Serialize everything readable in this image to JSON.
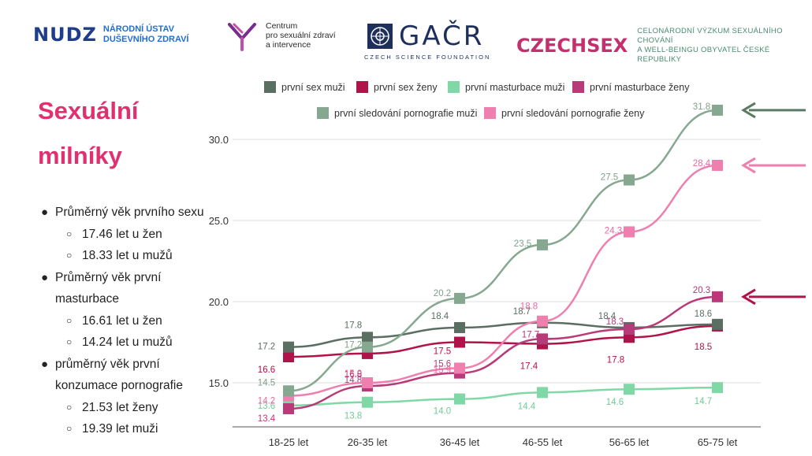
{
  "logos": {
    "nudz": {
      "mark": "NUDZ",
      "line1": "NÁRODNÍ ÚSTAV",
      "line2": "DUŠEVNÍHO ZDRAVÍ"
    },
    "centrum": {
      "line1": "Centrum",
      "line2": "pro sexuální zdraví",
      "line3": "a intervence"
    },
    "gacr": {
      "word": "GAČR",
      "sub": "CZECH SCIENCE FOUNDATION"
    },
    "czechsex": {
      "word": "CZECHSEX",
      "line1": "CELONÁRODNÍ VÝZKUM SEXUÁLNÍHO CHOVÁNÍ",
      "line2": "A WELL-BEINGU OBYVATEL ČESKÉ REPUBLIKY"
    }
  },
  "heading": {
    "line1": "Sexuální",
    "line2": "milníky"
  },
  "stats": [
    {
      "text": "Průměrný věk prvního sexu",
      "sub": [
        "17.46 let u žen",
        "18.33 let u mužů"
      ]
    },
    {
      "text": "Průměrný věk první masturbace",
      "sub": [
        "16.61 let u žen",
        "14.24 let u mužů"
      ]
    },
    {
      "text": "průměrný věk první konzumace pornografie",
      "sub": [
        "21.53 let ženy",
        "19.39 let muži"
      ]
    }
  ],
  "colors": {
    "heading": "#e0306f"
  },
  "chart_data": {
    "type": "line",
    "categories": [
      "18-25 let",
      "26-35 let",
      "36-45 let",
      "46-55 let",
      "56-65 let",
      "65-75 let"
    ],
    "yticks": [
      "15.0",
      "20.0",
      "25.0",
      "30.0"
    ],
    "ylim": [
      12.6,
      31.8
    ],
    "grid": true,
    "legend_position": "top",
    "series": [
      {
        "name": "první sex muži",
        "color": "#5a6e61",
        "values": [
          17.2,
          17.8,
          18.4,
          18.7,
          18.4,
          18.6
        ],
        "labels": [
          "17.2",
          "17.8",
          "18.4",
          "18.7",
          "18.4",
          "18.6"
        ]
      },
      {
        "name": "první sex ženy",
        "color": "#b0124a",
        "values": [
          16.6,
          16.8,
          17.5,
          17.4,
          17.8,
          18.5
        ],
        "labels": [
          "16.6",
          "16.8",
          "17.5",
          "17.4",
          "17.8",
          "18.5"
        ]
      },
      {
        "name": "první masturbace muži",
        "color": "#7fd8a5",
        "values": [
          13.6,
          13.8,
          14.0,
          14.4,
          14.6,
          14.7
        ],
        "labels": [
          "13.6",
          "13.8",
          "14.0",
          "14.4",
          "14.6",
          "14.7"
        ]
      },
      {
        "name": "první masturbace ženy",
        "color": "#b83a78",
        "values": [
          13.4,
          14.8,
          15.6,
          17.7,
          18.3,
          20.3
        ],
        "labels": [
          "13.4",
          "14.8",
          "15.6",
          "17.7",
          "18.3",
          "20.3"
        ]
      },
      {
        "name": "první sledování pornografie muži",
        "color": "#86a890",
        "values": [
          14.5,
          17.2,
          20.2,
          23.5,
          27.5,
          31.8
        ],
        "labels": [
          "14.5",
          "17.2",
          "20.2",
          "23.5",
          "27.5",
          "31.8"
        ]
      },
      {
        "name": "první sledování pornografie ženy",
        "color": "#ef7fae",
        "values": [
          14.2,
          15.0,
          15.9,
          18.8,
          24.3,
          28.4
        ],
        "labels": [
          "14.2",
          "15.0",
          "15.9",
          "18.8",
          "24.3",
          "28.4"
        ]
      }
    ]
  }
}
